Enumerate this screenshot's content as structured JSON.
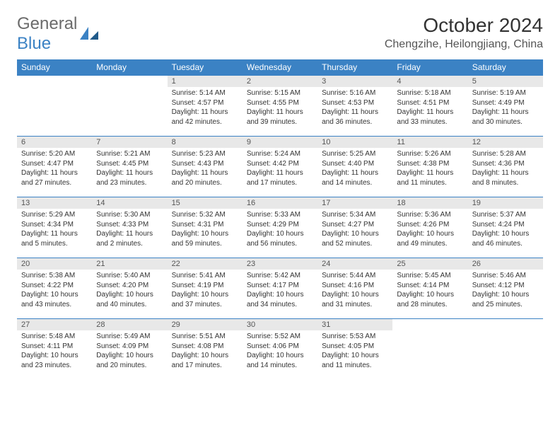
{
  "logo": {
    "word1": "General",
    "word2": "Blue"
  },
  "header": {
    "title": "October 2024",
    "location": "Chengzihe, Heilongjiang, China"
  },
  "colors": {
    "header_bg": "#3b82c4",
    "header_text": "#ffffff",
    "daynum_bg": "#e8e8e8",
    "body_text": "#333333",
    "logo_gray": "#6b6b6b",
    "logo_blue": "#3b82c4",
    "rule": "#3b82c4",
    "page_bg": "#ffffff"
  },
  "typography": {
    "title_fontsize": 28,
    "location_fontsize": 16,
    "weekday_fontsize": 12,
    "daynum_fontsize": 11,
    "cell_fontsize": 10,
    "font_family": "Arial"
  },
  "layout": {
    "columns": 7,
    "rows": 5,
    "blank_leading_cells": 2
  },
  "weekdays": [
    "Sunday",
    "Monday",
    "Tuesday",
    "Wednesday",
    "Thursday",
    "Friday",
    "Saturday"
  ],
  "days": [
    {
      "num": "1",
      "sunrise": "Sunrise: 5:14 AM",
      "sunset": "Sunset: 4:57 PM",
      "daylight": "Daylight: 11 hours and 42 minutes."
    },
    {
      "num": "2",
      "sunrise": "Sunrise: 5:15 AM",
      "sunset": "Sunset: 4:55 PM",
      "daylight": "Daylight: 11 hours and 39 minutes."
    },
    {
      "num": "3",
      "sunrise": "Sunrise: 5:16 AM",
      "sunset": "Sunset: 4:53 PM",
      "daylight": "Daylight: 11 hours and 36 minutes."
    },
    {
      "num": "4",
      "sunrise": "Sunrise: 5:18 AM",
      "sunset": "Sunset: 4:51 PM",
      "daylight": "Daylight: 11 hours and 33 minutes."
    },
    {
      "num": "5",
      "sunrise": "Sunrise: 5:19 AM",
      "sunset": "Sunset: 4:49 PM",
      "daylight": "Daylight: 11 hours and 30 minutes."
    },
    {
      "num": "6",
      "sunrise": "Sunrise: 5:20 AM",
      "sunset": "Sunset: 4:47 PM",
      "daylight": "Daylight: 11 hours and 27 minutes."
    },
    {
      "num": "7",
      "sunrise": "Sunrise: 5:21 AM",
      "sunset": "Sunset: 4:45 PM",
      "daylight": "Daylight: 11 hours and 23 minutes."
    },
    {
      "num": "8",
      "sunrise": "Sunrise: 5:23 AM",
      "sunset": "Sunset: 4:43 PM",
      "daylight": "Daylight: 11 hours and 20 minutes."
    },
    {
      "num": "9",
      "sunrise": "Sunrise: 5:24 AM",
      "sunset": "Sunset: 4:42 PM",
      "daylight": "Daylight: 11 hours and 17 minutes."
    },
    {
      "num": "10",
      "sunrise": "Sunrise: 5:25 AM",
      "sunset": "Sunset: 4:40 PM",
      "daylight": "Daylight: 11 hours and 14 minutes."
    },
    {
      "num": "11",
      "sunrise": "Sunrise: 5:26 AM",
      "sunset": "Sunset: 4:38 PM",
      "daylight": "Daylight: 11 hours and 11 minutes."
    },
    {
      "num": "12",
      "sunrise": "Sunrise: 5:28 AM",
      "sunset": "Sunset: 4:36 PM",
      "daylight": "Daylight: 11 hours and 8 minutes."
    },
    {
      "num": "13",
      "sunrise": "Sunrise: 5:29 AM",
      "sunset": "Sunset: 4:34 PM",
      "daylight": "Daylight: 11 hours and 5 minutes."
    },
    {
      "num": "14",
      "sunrise": "Sunrise: 5:30 AM",
      "sunset": "Sunset: 4:33 PM",
      "daylight": "Daylight: 11 hours and 2 minutes."
    },
    {
      "num": "15",
      "sunrise": "Sunrise: 5:32 AM",
      "sunset": "Sunset: 4:31 PM",
      "daylight": "Daylight: 10 hours and 59 minutes."
    },
    {
      "num": "16",
      "sunrise": "Sunrise: 5:33 AM",
      "sunset": "Sunset: 4:29 PM",
      "daylight": "Daylight: 10 hours and 56 minutes."
    },
    {
      "num": "17",
      "sunrise": "Sunrise: 5:34 AM",
      "sunset": "Sunset: 4:27 PM",
      "daylight": "Daylight: 10 hours and 52 minutes."
    },
    {
      "num": "18",
      "sunrise": "Sunrise: 5:36 AM",
      "sunset": "Sunset: 4:26 PM",
      "daylight": "Daylight: 10 hours and 49 minutes."
    },
    {
      "num": "19",
      "sunrise": "Sunrise: 5:37 AM",
      "sunset": "Sunset: 4:24 PM",
      "daylight": "Daylight: 10 hours and 46 minutes."
    },
    {
      "num": "20",
      "sunrise": "Sunrise: 5:38 AM",
      "sunset": "Sunset: 4:22 PM",
      "daylight": "Daylight: 10 hours and 43 minutes."
    },
    {
      "num": "21",
      "sunrise": "Sunrise: 5:40 AM",
      "sunset": "Sunset: 4:20 PM",
      "daylight": "Daylight: 10 hours and 40 minutes."
    },
    {
      "num": "22",
      "sunrise": "Sunrise: 5:41 AM",
      "sunset": "Sunset: 4:19 PM",
      "daylight": "Daylight: 10 hours and 37 minutes."
    },
    {
      "num": "23",
      "sunrise": "Sunrise: 5:42 AM",
      "sunset": "Sunset: 4:17 PM",
      "daylight": "Daylight: 10 hours and 34 minutes."
    },
    {
      "num": "24",
      "sunrise": "Sunrise: 5:44 AM",
      "sunset": "Sunset: 4:16 PM",
      "daylight": "Daylight: 10 hours and 31 minutes."
    },
    {
      "num": "25",
      "sunrise": "Sunrise: 5:45 AM",
      "sunset": "Sunset: 4:14 PM",
      "daylight": "Daylight: 10 hours and 28 minutes."
    },
    {
      "num": "26",
      "sunrise": "Sunrise: 5:46 AM",
      "sunset": "Sunset: 4:12 PM",
      "daylight": "Daylight: 10 hours and 25 minutes."
    },
    {
      "num": "27",
      "sunrise": "Sunrise: 5:48 AM",
      "sunset": "Sunset: 4:11 PM",
      "daylight": "Daylight: 10 hours and 23 minutes."
    },
    {
      "num": "28",
      "sunrise": "Sunrise: 5:49 AM",
      "sunset": "Sunset: 4:09 PM",
      "daylight": "Daylight: 10 hours and 20 minutes."
    },
    {
      "num": "29",
      "sunrise": "Sunrise: 5:51 AM",
      "sunset": "Sunset: 4:08 PM",
      "daylight": "Daylight: 10 hours and 17 minutes."
    },
    {
      "num": "30",
      "sunrise": "Sunrise: 5:52 AM",
      "sunset": "Sunset: 4:06 PM",
      "daylight": "Daylight: 10 hours and 14 minutes."
    },
    {
      "num": "31",
      "sunrise": "Sunrise: 5:53 AM",
      "sunset": "Sunset: 4:05 PM",
      "daylight": "Daylight: 10 hours and 11 minutes."
    }
  ]
}
